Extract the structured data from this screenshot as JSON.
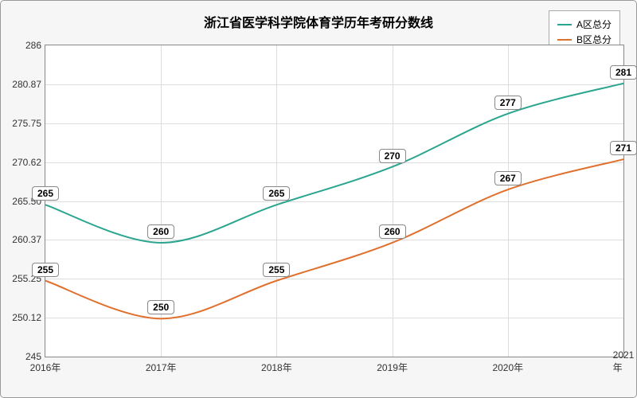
{
  "chart": {
    "type": "line",
    "title": "浙江省医学科学院体育学历年考研分数线",
    "title_fontsize": 16,
    "background_color": "#f6f6f6",
    "plot_background": "#ffffff",
    "grid_color": "#dddddd",
    "border_color": "#888888",
    "x_categories": [
      "2016年",
      "2017年",
      "2018年",
      "2019年",
      "2020年",
      "2021年"
    ],
    "ylim": [
      245,
      286
    ],
    "yticks": [
      245,
      250.12,
      255.25,
      260.37,
      265.5,
      270.62,
      275.75,
      280.87,
      286
    ],
    "label_fontsize": 12,
    "series": [
      {
        "name": "A区总分",
        "color": "#2aa58f",
        "line_width": 2,
        "values": [
          265,
          260,
          265,
          270,
          277,
          281
        ]
      },
      {
        "name": "B区总分",
        "color": "#e0702e",
        "line_width": 2,
        "values": [
          255,
          250,
          255,
          260,
          267,
          271
        ]
      }
    ],
    "legend_position": "top-right"
  }
}
